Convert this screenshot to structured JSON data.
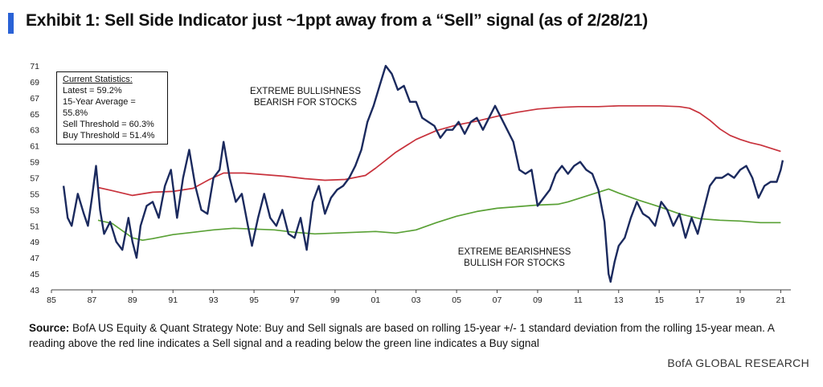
{
  "title": "Exhibit 1: Sell Side Indicator just ~1ppt away from a “Sell” signal (as of 2/28/21)",
  "stats": {
    "heading": "Current Statistics:",
    "lines": [
      "Latest = 59.2%",
      "15-Year Average = 55.8%",
      "Sell Threshold = 60.3%",
      "Buy Threshold = 51.4%"
    ]
  },
  "annotations": {
    "top": [
      "EXTREME BULLISHNESS",
      "BEARISH FOR STOCKS"
    ],
    "bottom": [
      "EXTREME BEARISHNESS",
      "BULLISH FOR STOCKS"
    ]
  },
  "source": {
    "label": "Source:",
    "text": "BofA US Equity & Quant Strategy Note: Buy and Sell signals are based on rolling 15-year +/- 1 standard deviation from the rolling 15-year mean. A reading above the red line indicates a Sell signal and a reading below the green line indicates a Buy signal"
  },
  "brand": "BofA GLOBAL RESEARCH",
  "chart_data": {
    "type": "line",
    "xlim": [
      1985,
      2021.5
    ],
    "ylim": [
      43,
      71
    ],
    "x_ticks": [
      "85",
      "87",
      "89",
      "91",
      "93",
      "95",
      "97",
      "99",
      "01",
      "03",
      "05",
      "07",
      "09",
      "11",
      "13",
      "15",
      "17",
      "19",
      "21"
    ],
    "y_ticks": [
      43,
      45,
      47,
      49,
      51,
      53,
      55,
      57,
      59,
      61,
      63,
      65,
      67,
      69,
      71
    ],
    "grid": false,
    "series": [
      {
        "role": "indicator",
        "color": "#1b2a5e",
        "x": [
          1985.6,
          1985.8,
          1986.0,
          1986.3,
          1986.6,
          1986.8,
          1987.0,
          1987.2,
          1987.4,
          1987.6,
          1987.9,
          1988.2,
          1988.5,
          1988.8,
          1989.0,
          1989.2,
          1989.4,
          1989.7,
          1990.0,
          1990.3,
          1990.6,
          1990.9,
          1991.2,
          1991.5,
          1991.8,
          1992.1,
          1992.4,
          1992.7,
          1993.0,
          1993.3,
          1993.5,
          1993.8,
          1994.1,
          1994.4,
          1994.7,
          1994.9,
          1995.2,
          1995.5,
          1995.8,
          1996.1,
          1996.4,
          1996.7,
          1997.0,
          1997.3,
          1997.6,
          1997.9,
          1998.2,
          1998.5,
          1998.8,
          1999.1,
          1999.4,
          1999.7,
          2000.0,
          2000.3,
          2000.6,
          2000.9,
          2001.2,
          2001.5,
          2001.8,
          2002.1,
          2002.4,
          2002.7,
          2003.0,
          2003.3,
          2003.6,
          2003.9,
          2004.2,
          2004.5,
          2004.8,
          2005.1,
          2005.4,
          2005.7,
          2006.0,
          2006.3,
          2006.6,
          2006.9,
          2007.2,
          2007.5,
          2007.8,
          2008.1,
          2008.4,
          2008.7,
          2009.0,
          2009.3,
          2009.6,
          2009.9,
          2010.2,
          2010.5,
          2010.8,
          2011.1,
          2011.4,
          2011.7,
          2012.0,
          2012.3,
          2012.5,
          2012.6,
          2012.8,
          2013.0,
          2013.3,
          2013.6,
          2013.9,
          2014.2,
          2014.5,
          2014.8,
          2015.1,
          2015.4,
          2015.7,
          2016.0,
          2016.3,
          2016.6,
          2016.9,
          2017.2,
          2017.5,
          2017.8,
          2018.1,
          2018.4,
          2018.7,
          2019.0,
          2019.3,
          2019.6,
          2019.9,
          2020.2,
          2020.5,
          2020.8,
          2021.0,
          2021.1
        ],
        "y": [
          56.0,
          52.0,
          51.0,
          55.0,
          52.5,
          51.0,
          54.5,
          58.5,
          53.0,
          50.0,
          51.5,
          49.0,
          48.0,
          52.0,
          49.0,
          47.0,
          51.0,
          53.5,
          54.0,
          52.0,
          56.0,
          58.0,
          52.0,
          57.0,
          60.5,
          56.0,
          53.0,
          52.5,
          57.0,
          58.0,
          61.5,
          57.0,
          54.0,
          55.0,
          51.0,
          48.5,
          52.0,
          55.0,
          52.0,
          51.0,
          53.0,
          50.0,
          49.5,
          52.0,
          48.0,
          54.0,
          56.0,
          52.5,
          54.5,
          55.5,
          56.0,
          57.0,
          58.5,
          60.5,
          64.0,
          66.0,
          68.5,
          71.0,
          70.0,
          68.0,
          68.5,
          66.5,
          66.5,
          64.5,
          64.0,
          63.5,
          62.0,
          63.0,
          63.0,
          64.0,
          62.5,
          64.0,
          64.5,
          63.0,
          64.5,
          66.0,
          64.5,
          63.0,
          61.5,
          58.0,
          57.5,
          58.0,
          53.5,
          54.5,
          55.5,
          57.5,
          58.5,
          57.5,
          58.5,
          59.0,
          58.0,
          57.5,
          55.5,
          51.5,
          45.0,
          44.0,
          46.5,
          48.5,
          49.5,
          52.0,
          54.0,
          52.5,
          52.0,
          51.0,
          54.0,
          53.0,
          51.0,
          52.5,
          49.5,
          52.0,
          50.0,
          53.0,
          56.0,
          57.0,
          57.0,
          57.5,
          57.0,
          58.0,
          58.5,
          57.0,
          54.5,
          56.0,
          56.5,
          56.5,
          58.0,
          59.2
        ]
      },
      {
        "role": "sell_threshold",
        "color": "#c8323c",
        "x": [
          1987.3,
          1988.0,
          1989.0,
          1990.0,
          1991.0,
          1992.0,
          1992.8,
          1993.5,
          1994.5,
          1995.5,
          1996.5,
          1997.5,
          1998.5,
          1999.5,
          2000.5,
          2001.0,
          2001.5,
          2002.0,
          2003.0,
          2004.0,
          2005.0,
          2006.0,
          2007.0,
          2008.0,
          2009.0,
          2010.0,
          2011.0,
          2012.0,
          2013.0,
          2014.0,
          2015.0,
          2016.0,
          2016.5,
          2017.0,
          2017.5,
          2018.0,
          2018.5,
          2019.0,
          2019.5,
          2020.0,
          2020.5,
          2021.0
        ],
        "y": [
          55.8,
          55.4,
          54.8,
          55.2,
          55.3,
          55.7,
          56.8,
          57.6,
          57.6,
          57.4,
          57.2,
          56.9,
          56.7,
          56.8,
          57.3,
          58.2,
          59.2,
          60.2,
          61.8,
          62.9,
          63.6,
          64.1,
          64.7,
          65.2,
          65.6,
          65.8,
          65.9,
          65.9,
          66.0,
          66.0,
          66.0,
          65.9,
          65.7,
          65.1,
          64.2,
          63.1,
          62.3,
          61.8,
          61.4,
          61.1,
          60.7,
          60.3
        ]
      },
      {
        "role": "buy_threshold",
        "color": "#5aa136",
        "x": [
          1987.3,
          1988.0,
          1988.5,
          1989.0,
          1989.5,
          1990.0,
          1991.0,
          1992.0,
          1993.0,
          1994.0,
          1995.0,
          1996.0,
          1997.0,
          1998.0,
          1999.0,
          2000.0,
          2001.0,
          2002.0,
          2003.0,
          2004.0,
          2005.0,
          2006.0,
          2007.0,
          2008.0,
          2009.0,
          2010.0,
          2010.5,
          2011.0,
          2011.5,
          2012.0,
          2012.5,
          2013.0,
          2014.0,
          2015.0,
          2016.0,
          2017.0,
          2018.0,
          2019.0,
          2020.0,
          2021.0
        ],
        "y": [
          51.7,
          51.3,
          50.4,
          49.5,
          49.2,
          49.4,
          49.9,
          50.2,
          50.5,
          50.7,
          50.6,
          50.5,
          50.2,
          50.0,
          50.1,
          50.2,
          50.3,
          50.1,
          50.5,
          51.4,
          52.2,
          52.8,
          53.2,
          53.4,
          53.6,
          53.7,
          54.0,
          54.4,
          54.8,
          55.2,
          55.6,
          55.1,
          54.2,
          53.4,
          52.5,
          51.9,
          51.7,
          51.6,
          51.4,
          51.4
        ]
      }
    ]
  }
}
